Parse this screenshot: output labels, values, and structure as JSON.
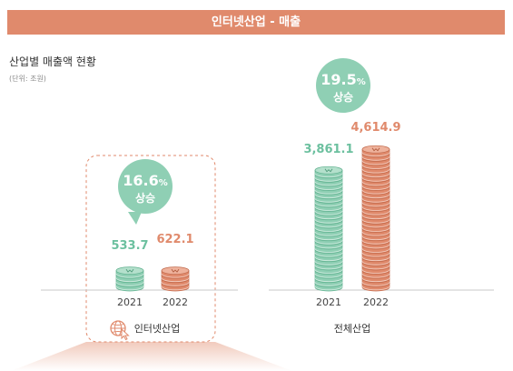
{
  "header": {
    "title": "인터넷산업 - 매출"
  },
  "subtitle": "산업별 매출액 현황",
  "unit_note": "(단위: 조원)",
  "colors": {
    "banner": "#e08a6c",
    "y2021": "#8fcfb4",
    "y2022": "#e08a6c",
    "bubble": "#8fcfb4"
  },
  "chart_data": [
    {
      "type": "bar",
      "category": "인터넷산업",
      "categories": [
        "2021",
        "2022"
      ],
      "values": [
        533.7,
        622.1
      ],
      "value_labels": [
        "533.7",
        "622.1"
      ],
      "growth": {
        "pct": "16.6",
        "symbol": "%",
        "text": "상승"
      },
      "icon": "globe-cursor-icon"
    },
    {
      "type": "bar",
      "category": "전체산업",
      "categories": [
        "2021",
        "2022"
      ],
      "values": [
        3861.1,
        4614.9
      ],
      "value_labels": [
        "3,861.1",
        "4,614.9"
      ],
      "growth": {
        "pct": "19.5",
        "symbol": "%",
        "text": "상승"
      }
    }
  ]
}
